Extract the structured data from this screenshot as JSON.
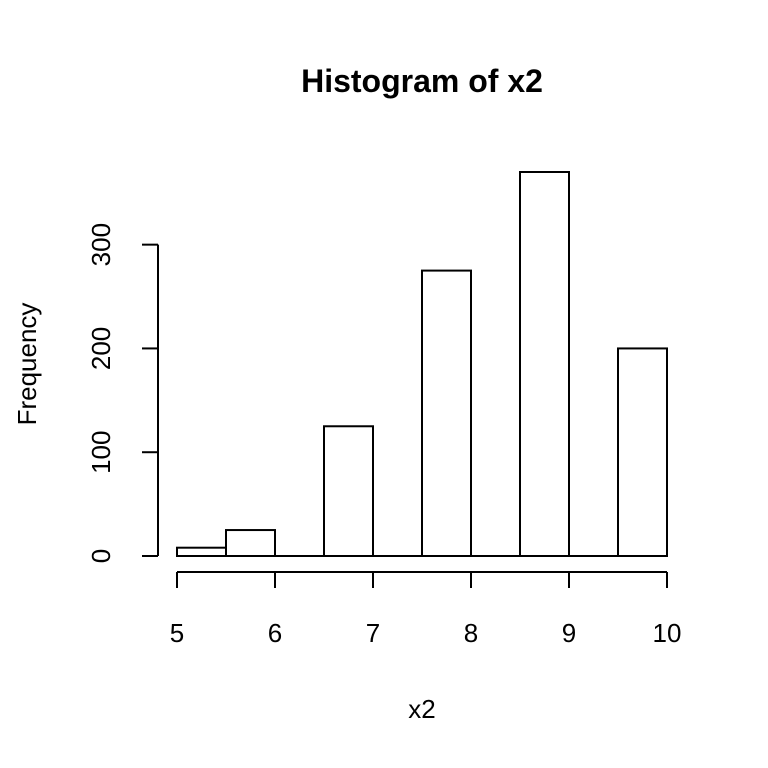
{
  "chart_data": {
    "type": "bar",
    "title": "Histogram of x2",
    "xlabel": "x2",
    "ylabel": "Frequency",
    "bins": [
      {
        "start": 5.0,
        "end": 5.5,
        "value": 8
      },
      {
        "start": 5.5,
        "end": 6.0,
        "value": 25
      },
      {
        "start": 6.0,
        "end": 6.5,
        "value": 0
      },
      {
        "start": 6.5,
        "end": 7.0,
        "value": 125
      },
      {
        "start": 7.0,
        "end": 7.5,
        "value": 0
      },
      {
        "start": 7.5,
        "end": 8.0,
        "value": 275
      },
      {
        "start": 8.0,
        "end": 8.5,
        "value": 0
      },
      {
        "start": 8.5,
        "end": 9.0,
        "value": 370
      },
      {
        "start": 9.0,
        "end": 9.5,
        "value": 0
      },
      {
        "start": 9.5,
        "end": 10.0,
        "value": 200
      }
    ],
    "xlim": [
      5,
      10
    ],
    "ylim": [
      0,
      370
    ],
    "x_ticks": [
      5,
      6,
      7,
      8,
      9,
      10
    ],
    "y_ticks": [
      0,
      100,
      200,
      300
    ],
    "grid": false,
    "colors": {
      "bar_fill": "#ffffff",
      "bar_stroke": "#000000"
    }
  }
}
